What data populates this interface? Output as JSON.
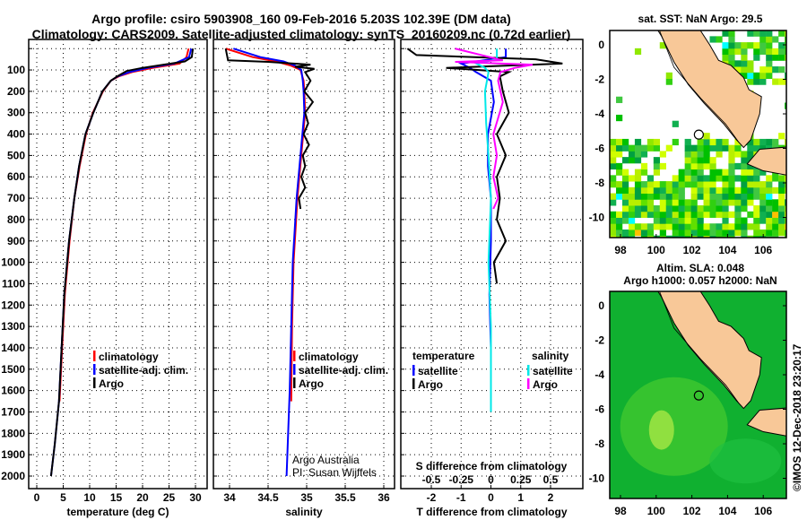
{
  "title_line1": "Argo profile: csiro 5903908_160 09-Feb-2016 5.203S 102.39E (DM data)",
  "title_line2": "Climatology: CARS2009. Satellite-adjusted climatology: synTS_20160209.nc (0.72d earlier)",
  "credit": "©IMOS 12-Dec-2018 23:20:17",
  "colors": {
    "climatology": "#ff0000",
    "satellite": "#0000ff",
    "argo": "#000000",
    "sal_satellite": "#00e8e8",
    "sal_argo": "#ff00ff",
    "land": "#f8c898"
  },
  "chart_data": [
    {
      "type": "line",
      "name": "temperature",
      "xlabel": "temperature (deg C)",
      "xlim": [
        -1,
        31.5
      ],
      "xticks": [
        "0",
        "5",
        "10",
        "15",
        "20",
        "25",
        "30"
      ],
      "ylim": [
        -40,
        2070
      ],
      "yticks": [
        "0",
        "100",
        "200",
        "300",
        "400",
        "500",
        "600",
        "700",
        "800",
        "900",
        "1000",
        "1100",
        "1200",
        "1300",
        "1400",
        "1500",
        "1600",
        "1700",
        "1800",
        "1900",
        "2000"
      ],
      "legend": [
        "climatology",
        "satellite-adj. clim.",
        "Argo"
      ],
      "series": [
        {
          "name": "climatology",
          "depth": [
            0,
            40,
            70,
            90,
            110,
            130,
            150,
            200,
            300,
            400,
            550,
            700,
            900,
            1150,
            1400,
            1650
          ],
          "values": [
            28.7,
            28.3,
            27,
            22,
            18,
            15.5,
            14,
            12.5,
            10.6,
            9.3,
            8.1,
            7.1,
            6.2,
            5.3,
            4.8,
            4.3
          ]
        },
        {
          "name": "satellite-adj. clim.",
          "depth": [
            0,
            40,
            70,
            90,
            110,
            130,
            150,
            200,
            300,
            400,
            550,
            700,
            900,
            1150,
            1400,
            1650,
            1850,
            2000
          ],
          "values": [
            29.2,
            28.8,
            26,
            21,
            17.5,
            15.3,
            14,
            12.4,
            10.7,
            9.2,
            8,
            7.1,
            6.1,
            5.2,
            4.7,
            4.2,
            3.4,
            2.7
          ]
        },
        {
          "name": "Argo",
          "depth": [
            0,
            40,
            60,
            75,
            90,
            105,
            130,
            150,
            200,
            300,
            400,
            550,
            700,
            900,
            1150,
            1400,
            1650,
            1850,
            2000
          ],
          "values": [
            29.5,
            29.3,
            28,
            24,
            20,
            17,
            15.2,
            14,
            12.4,
            10.7,
            9.2,
            8,
            7.1,
            6.1,
            5.2,
            4.7,
            4.2,
            3.4,
            2.7
          ]
        }
      ]
    },
    {
      "type": "line",
      "name": "salinity",
      "xlabel": "salinity",
      "xlim": [
        33.8,
        36.15
      ],
      "xticks": [
        "34",
        "34.5",
        "35",
        "35.5",
        "36"
      ],
      "ylim": [
        -40,
        2070
      ],
      "legend": [
        "climatology",
        "satellite-adj. clim.",
        "Argo"
      ],
      "annotation": [
        "Argo Australia",
        "PI: Susan Wijffels"
      ],
      "series": [
        {
          "name": "climatology",
          "depth": [
            0,
            40,
            60,
            80,
            100,
            150,
            200,
            300,
            500,
            700,
            1000,
            1300,
            1650
          ],
          "values": [
            33.95,
            34.3,
            34.6,
            34.8,
            34.92,
            34.96,
            34.97,
            34.98,
            34.93,
            34.88,
            34.83,
            34.81,
            34.8
          ]
        },
        {
          "name": "satellite-adj. clim.",
          "depth": [
            0,
            40,
            60,
            80,
            100,
            150,
            200,
            300,
            500,
            700,
            1000,
            1300,
            1600,
            2000
          ],
          "values": [
            34.05,
            34.4,
            34.7,
            34.85,
            34.93,
            34.95,
            34.96,
            34.97,
            34.92,
            34.87,
            34.82,
            34.8,
            34.78,
            34.74
          ]
        },
        {
          "name": "Argo",
          "depth": [
            0,
            55,
            62,
            75,
            85,
            95,
            110,
            150,
            200,
            250,
            300,
            350,
            400,
            450,
            500,
            550,
            600,
            650,
            700,
            750
          ],
          "values": [
            33.95,
            33.98,
            34.5,
            35.05,
            34.85,
            35.1,
            34.98,
            35.05,
            34.97,
            35.08,
            34.98,
            35.02,
            34.96,
            35.03,
            34.95,
            34.98,
            34.93,
            34.98,
            34.9,
            34.92
          ]
        }
      ]
    },
    {
      "type": "line",
      "name": "difference",
      "xlabel": "T difference from climatology",
      "xlabel_top": "S difference from climatology",
      "xlim": [
        -3,
        3
      ],
      "xticks": [
        "-2",
        "-1",
        "0",
        "1",
        "2"
      ],
      "s_xticks": [
        "-0.5",
        "-0.25",
        "0",
        "0.25",
        "0.5"
      ],
      "legend_temperature": {
        "title": "temperature",
        "items": [
          "satellite",
          "Argo"
        ]
      },
      "legend_salinity": {
        "title": "salinity",
        "items": [
          "satellite",
          "Argo"
        ]
      },
      "series": [
        {
          "name": "T satellite",
          "depth": [
            0,
            40,
            70,
            90,
            110,
            150,
            250,
            400,
            550,
            700,
            900,
            1150,
            1400,
            1700
          ],
          "values": [
            0.5,
            0.5,
            -1,
            -0.7,
            -0.5,
            0,
            0.1,
            -0.1,
            -0.1,
            0,
            0,
            -0.05,
            0,
            0
          ]
        },
        {
          "name": "T Argo",
          "depth": [
            0,
            30,
            50,
            70,
            90,
            110,
            130,
            200,
            300,
            400,
            500,
            600,
            700,
            800,
            900,
            1000,
            1100
          ],
          "values": [
            -2.8,
            -2.5,
            1.5,
            2.4,
            -1.5,
            0.6,
            0.3,
            0.4,
            0.6,
            0.2,
            0.5,
            0.2,
            0.3,
            0.2,
            0.5,
            0.1,
            0.2
          ]
        },
        {
          "name": "S satellite",
          "depth": [
            0,
            50,
            70,
            90,
            110,
            200,
            350,
            500,
            700,
            1000,
            1300,
            1700
          ],
          "values": [
            0.05,
            0.05,
            -0.12,
            -0.05,
            -0.02,
            -0.05,
            -0.04,
            -0.02,
            0,
            -0.02,
            0,
            0
          ]
        },
        {
          "name": "S Argo",
          "depth": [
            0,
            55,
            62,
            75,
            90,
            110,
            150,
            250,
            400,
            500,
            600,
            700,
            750
          ],
          "values": [
            -0.3,
            0.1,
            -0.3,
            0.35,
            0.2,
            0.08,
            0.06,
            0.1,
            0.02,
            0.05,
            0.02,
            0.06,
            0.02
          ]
        }
      ]
    },
    {
      "type": "heatmap",
      "name": "sat-sst-map",
      "title": "sat. SST: NaN Argo: 29.5",
      "xlim": [
        97.4,
        107.5
      ],
      "ylim": [
        -11.3,
        0.9
      ],
      "xticks": [
        "98",
        "100",
        "102",
        "104",
        "106"
      ],
      "yticks": [
        "0",
        "-2",
        "-4",
        "-6",
        "-8",
        "-10"
      ],
      "argo_position": [
        102.39,
        -5.203
      ]
    },
    {
      "type": "heatmap",
      "name": "altimetry-map",
      "title_line1": "Altim. SLA: 0.048",
      "title_line2": "Argo h1000: 0.057 h2000: NaN",
      "xlim": [
        97.4,
        107.5
      ],
      "ylim": [
        -11.3,
        0.9
      ],
      "xticks": [
        "98",
        "100",
        "102",
        "104",
        "106"
      ],
      "yticks": [
        "0",
        "-2",
        "-4",
        "-6",
        "-8",
        "-10"
      ],
      "argo_position": [
        102.39,
        -5.203
      ]
    }
  ]
}
